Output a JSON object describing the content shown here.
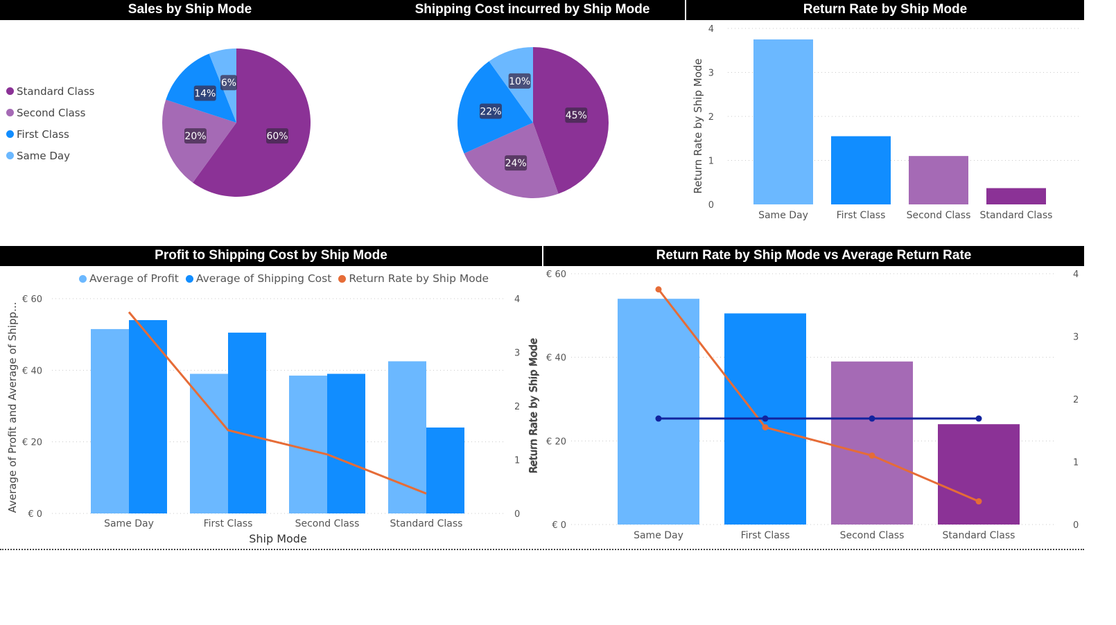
{
  "colors": {
    "standard_class": "#8B3296",
    "second_class": "#A56AB5",
    "first_class": "#118DFF",
    "same_day": "#6BB8FF",
    "return_rate_line": "#E66C37",
    "average_line": "#12239E"
  },
  "panels": {
    "sales": {
      "title": "Sales by Ship Mode"
    },
    "shipping": {
      "title": "Shipping Cost incurred by Ship Mode"
    },
    "return": {
      "title": "Return Rate by Ship Mode"
    },
    "profit": {
      "title": "Profit to Shipping Cost by Ship Mode"
    },
    "vs": {
      "title": "Return Rate by Ship Mode vs Average Return Rate"
    }
  },
  "chart_data": [
    {
      "type": "pie",
      "title": "Sales by Ship Mode",
      "slices": [
        {
          "label": "Standard Class",
          "percent": 60,
          "display": "60%"
        },
        {
          "label": "Second Class",
          "percent": 20,
          "display": "20%"
        },
        {
          "label": "First Class",
          "percent": 14,
          "display": "14%"
        },
        {
          "label": "Same Day",
          "percent": 6,
          "display": "6%"
        }
      ],
      "legend": [
        "Standard Class",
        "Second Class",
        "First Class",
        "Same Day"
      ],
      "legend_position": "left"
    },
    {
      "type": "pie",
      "title": "Shipping Cost incurred by Ship Mode",
      "slices": [
        {
          "label": "Standard Class",
          "percent": 45,
          "display": "45%"
        },
        {
          "label": "Second Class",
          "percent": 24,
          "display": "24%"
        },
        {
          "label": "First Class",
          "percent": 22,
          "display": "22%"
        },
        {
          "label": "Same Day",
          "percent": 10,
          "display": "10%"
        }
      ]
    },
    {
      "type": "bar",
      "title": "Return Rate by Ship Mode",
      "categories": [
        "Same Day",
        "First Class",
        "Second Class",
        "Standard Class"
      ],
      "values": [
        3.75,
        1.55,
        1.1,
        0.37
      ],
      "ylabel": "Return Rate by Ship Mode",
      "ylim": [
        0,
        4
      ],
      "yticks": [
        "0",
        "1",
        "2",
        "3",
        "4"
      ],
      "grid": true
    },
    {
      "type": "bar",
      "title": "Profit to Shipping Cost by Ship Mode",
      "categories": [
        "Same Day",
        "First Class",
        "Second Class",
        "Standard Class"
      ],
      "series": [
        {
          "name": "Average of Profit",
          "values": [
            51.5,
            39,
            38.5,
            42.5
          ]
        },
        {
          "name": "Average of Shipping Cost",
          "values": [
            54,
            50.5,
            39,
            24
          ]
        },
        {
          "name": "Return Rate by Ship Mode",
          "values": [
            3.75,
            1.55,
            1.1,
            0.37
          ],
          "axis": "secondary",
          "kind": "line"
        }
      ],
      "xlabel": "Ship Mode",
      "ylabel": "Average of Profit and Average of Shipp...",
      "y2label": "Return Rate by Ship Mode",
      "ylim": [
        0,
        60
      ],
      "y2lim": [
        0,
        4
      ],
      "yticks": [
        "€ 0",
        "€ 20",
        "€ 40",
        "€ 60"
      ],
      "y2ticks": [
        "0",
        "1",
        "2",
        "3",
        "4"
      ],
      "legend_position": "top",
      "grid": true
    },
    {
      "type": "bar",
      "title": "Return Rate by Ship Mode vs Average Return Rate",
      "categories": [
        "Same Day",
        "First Class",
        "Second Class",
        "Standard Class"
      ],
      "series": [
        {
          "name": "",
          "values": [
            54,
            50.5,
            39,
            24
          ],
          "kind": "bar"
        },
        {
          "name": "",
          "values": [
            3.75,
            1.55,
            1.1,
            0.37
          ],
          "axis": "secondary",
          "kind": "line"
        },
        {
          "name": "",
          "values": [
            1.69,
            1.69,
            1.69,
            1.69
          ],
          "axis": "secondary",
          "kind": "line"
        }
      ],
      "ylabel": "Return Rate by Ship Mode",
      "ylim": [
        0,
        60
      ],
      "y2lim": [
        0,
        4
      ],
      "yticks": [
        "€ 0",
        "€ 20",
        "€ 40",
        "€ 60"
      ],
      "y2ticks": [
        "0",
        "1",
        "2",
        "3",
        "4"
      ],
      "grid": true
    }
  ]
}
